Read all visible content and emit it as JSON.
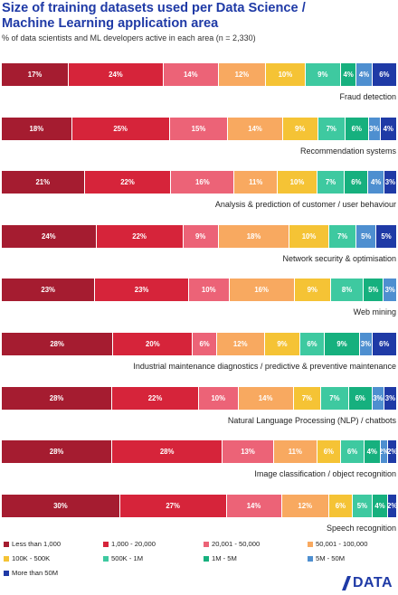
{
  "header": {
    "title_line1": "Size of training datasets used per Data Science /",
    "title_line2": "Machine Learning application area",
    "subtitle": "% of data scientists and ML developers active in each area (n = 2,330)"
  },
  "colors": [
    "#a51c30",
    "#d6243a",
    "#ec6377",
    "#f8a960",
    "#f5c335",
    "#3ec9a0",
    "#16b07e",
    "#4e8fd0",
    "#1f3aa6"
  ],
  "chart_data": {
    "type": "bar",
    "orientation": "horizontal",
    "stacked": true,
    "normalized": true,
    "categories": [
      "Fraud detection",
      "Recommendation systems",
      "Analysis & prediction of customer / user behaviour",
      "Network security & optimisation",
      "Web mining",
      "Industrial maintenance diagnostics / predictive & preventive maintenance",
      "Natural Language Processing (NLP) / chatbots",
      "Image classification / object recognition",
      "Speech recognition"
    ],
    "series": [
      {
        "name": "Less than 1,000",
        "values": [
          17,
          18,
          21,
          24,
          23,
          28,
          28,
          28,
          30
        ]
      },
      {
        "name": "1,000 - 20,000",
        "values": [
          24,
          25,
          22,
          22,
          23,
          20,
          22,
          28,
          27
        ]
      },
      {
        "name": "20,001 - 50,000",
        "values": [
          14,
          15,
          16,
          9,
          10,
          6,
          10,
          13,
          14
        ]
      },
      {
        "name": "50,001 - 100,000",
        "values": [
          12,
          14,
          11,
          18,
          16,
          12,
          14,
          11,
          12
        ]
      },
      {
        "name": "100K - 500K",
        "values": [
          10,
          9,
          10,
          10,
          9,
          9,
          7,
          6,
          6
        ]
      },
      {
        "name": "500K - 1M",
        "values": [
          9,
          7,
          7,
          7,
          8,
          6,
          7,
          6,
          5
        ]
      },
      {
        "name": "1M - 5M",
        "values": [
          4,
          6,
          6,
          0,
          5,
          9,
          6,
          4,
          4
        ]
      },
      {
        "name": "5M - 50M",
        "values": [
          4,
          3,
          4,
          5,
          3,
          3,
          3,
          2,
          0
        ]
      },
      {
        "name": "More than 50M",
        "values": [
          6,
          4,
          3,
          5,
          0,
          6,
          3,
          2,
          2
        ]
      }
    ],
    "value_suffix": "%",
    "legend_position": "bottom"
  },
  "brand": {
    "logo_text": "DATA"
  }
}
